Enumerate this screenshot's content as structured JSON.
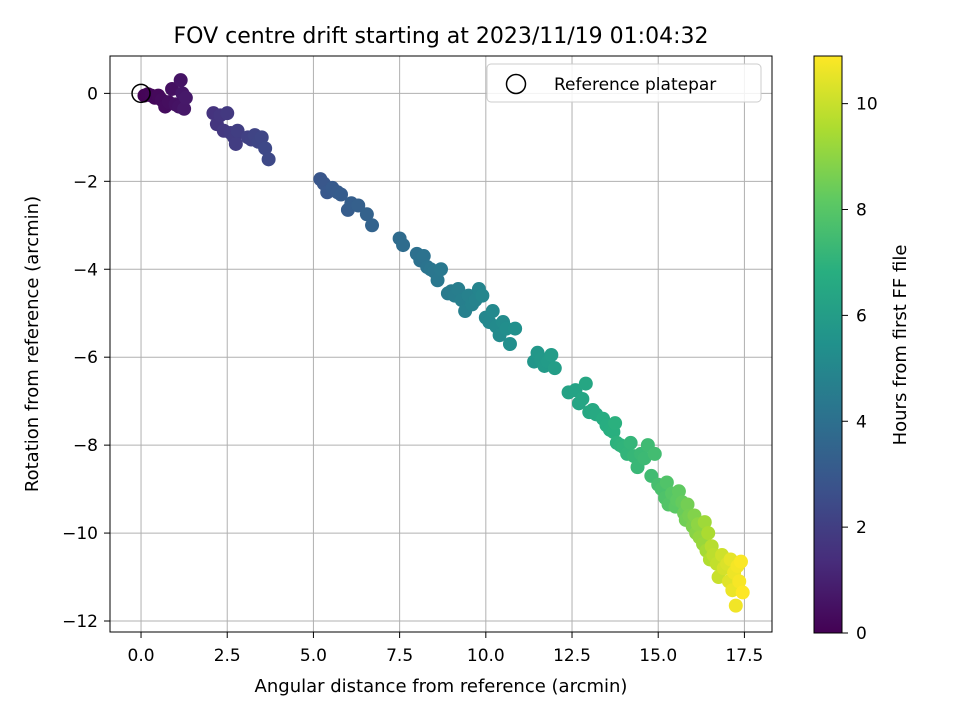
{
  "chart_data": {
    "type": "scatter",
    "title": "FOV centre drift starting at 2023/11/19 01:04:32",
    "xlabel": "Angular distance from reference (arcmin)",
    "ylabel": "Rotation from reference (arcmin)",
    "xlim": [
      -0.9,
      18.3
    ],
    "ylim": [
      -12.25,
      0.85
    ],
    "xticks": [
      0.0,
      2.5,
      5.0,
      7.5,
      10.0,
      12.5,
      15.0,
      17.5
    ],
    "xtick_labels": [
      "0.0",
      "2.5",
      "5.0",
      "7.5",
      "10.0",
      "12.5",
      "15.0",
      "17.5"
    ],
    "yticks": [
      0,
      -2,
      -4,
      -6,
      -8,
      -10,
      -12
    ],
    "ytick_labels": [
      "0",
      "−2",
      "−4",
      "−6",
      "−8",
      "−10",
      "−12"
    ],
    "grid": true,
    "colormap": "viridis",
    "colorbar": {
      "label": "Hours from first FF file",
      "range": [
        0,
        10.9
      ],
      "ticks": [
        0,
        2,
        4,
        6,
        8,
        10
      ],
      "tick_labels": [
        "0",
        "2",
        "4",
        "6",
        "8",
        "10"
      ]
    },
    "legend": {
      "placement": "top-right",
      "entries": [
        {
          "label": "Reference platepar",
          "marker": "open-circle"
        }
      ]
    },
    "reference_point": {
      "x": 0.0,
      "y": 0.0
    },
    "series": [
      {
        "name": "",
        "points": [
          [
            0.1,
            -0.05,
            0.05
          ],
          [
            0.2,
            -0.02,
            0.1
          ],
          [
            0.3,
            -0.05,
            0.15
          ],
          [
            0.4,
            -0.1,
            0.2
          ],
          [
            0.5,
            -0.05,
            0.25
          ],
          [
            0.6,
            -0.15,
            0.3
          ],
          [
            0.7,
            -0.3,
            0.35
          ],
          [
            0.8,
            -0.2,
            0.4
          ],
          [
            0.9,
            0.1,
            0.45
          ],
          [
            1.0,
            -0.25,
            0.5
          ],
          [
            1.1,
            -0.3,
            0.55
          ],
          [
            1.15,
            0.3,
            0.6
          ],
          [
            1.2,
            0.0,
            0.65
          ],
          [
            1.25,
            -0.35,
            0.7
          ],
          [
            1.3,
            -0.1,
            0.75
          ],
          [
            2.1,
            -0.45,
            1.6
          ],
          [
            2.2,
            -0.7,
            1.65
          ],
          [
            2.3,
            -0.5,
            1.7
          ],
          [
            2.4,
            -0.85,
            1.75
          ],
          [
            2.5,
            -0.45,
            1.8
          ],
          [
            2.6,
            -0.9,
            1.85
          ],
          [
            2.7,
            -1.0,
            1.9
          ],
          [
            2.75,
            -1.15,
            1.95
          ],
          [
            2.8,
            -0.85,
            2.0
          ],
          [
            3.1,
            -1.0,
            2.1
          ],
          [
            3.2,
            -1.05,
            2.15
          ],
          [
            3.3,
            -0.95,
            2.2
          ],
          [
            3.4,
            -1.1,
            2.25
          ],
          [
            3.5,
            -1.0,
            2.3
          ],
          [
            3.6,
            -1.25,
            2.35
          ],
          [
            3.7,
            -1.5,
            2.4
          ],
          [
            5.2,
            -1.95,
            2.9
          ],
          [
            5.3,
            -2.05,
            2.95
          ],
          [
            5.4,
            -2.25,
            3.0
          ],
          [
            5.55,
            -2.15,
            3.05
          ],
          [
            5.7,
            -2.25,
            3.1
          ],
          [
            5.8,
            -2.3,
            3.15
          ],
          [
            6.0,
            -2.65,
            3.2
          ],
          [
            6.1,
            -2.5,
            3.25
          ],
          [
            6.3,
            -2.55,
            3.3
          ],
          [
            6.55,
            -2.75,
            3.4
          ],
          [
            6.7,
            -3.0,
            3.45
          ],
          [
            7.5,
            -3.3,
            3.8
          ],
          [
            7.6,
            -3.45,
            3.85
          ],
          [
            8.0,
            -3.65,
            4.0
          ],
          [
            8.1,
            -3.8,
            4.05
          ],
          [
            8.2,
            -3.7,
            4.1
          ],
          [
            8.3,
            -3.95,
            4.15
          ],
          [
            8.4,
            -4.0,
            4.2
          ],
          [
            8.5,
            -4.05,
            4.25
          ],
          [
            8.6,
            -4.25,
            4.3
          ],
          [
            8.7,
            -4.0,
            4.35
          ],
          [
            8.9,
            -4.55,
            4.45
          ],
          [
            9.0,
            -4.5,
            4.5
          ],
          [
            9.1,
            -4.6,
            4.55
          ],
          [
            9.2,
            -4.45,
            4.6
          ],
          [
            9.3,
            -4.7,
            4.65
          ],
          [
            9.4,
            -4.95,
            4.7
          ],
          [
            9.5,
            -4.6,
            4.75
          ],
          [
            9.6,
            -4.8,
            4.8
          ],
          [
            9.7,
            -4.7,
            4.85
          ],
          [
            9.8,
            -4.45,
            4.9
          ],
          [
            9.9,
            -4.6,
            4.95
          ],
          [
            10.0,
            -5.1,
            5.0
          ],
          [
            10.1,
            -5.2,
            5.05
          ],
          [
            10.2,
            -4.95,
            5.1
          ],
          [
            10.3,
            -5.3,
            5.15
          ],
          [
            10.4,
            -5.5,
            5.2
          ],
          [
            10.5,
            -5.2,
            5.25
          ],
          [
            10.6,
            -5.35,
            5.3
          ],
          [
            10.7,
            -5.7,
            5.35
          ],
          [
            10.85,
            -5.35,
            5.4
          ],
          [
            11.4,
            -6.1,
            5.7
          ],
          [
            11.5,
            -5.9,
            5.75
          ],
          [
            11.6,
            -6.05,
            5.8
          ],
          [
            11.7,
            -6.2,
            5.85
          ],
          [
            11.8,
            -6.1,
            5.9
          ],
          [
            11.9,
            -5.95,
            5.95
          ],
          [
            12.0,
            -6.25,
            6.0
          ],
          [
            12.4,
            -6.8,
            6.25
          ],
          [
            12.6,
            -6.75,
            6.3
          ],
          [
            12.7,
            -7.05,
            6.35
          ],
          [
            12.8,
            -6.95,
            6.4
          ],
          [
            12.9,
            -6.6,
            6.45
          ],
          [
            13.0,
            -7.25,
            6.5
          ],
          [
            13.1,
            -7.2,
            6.55
          ],
          [
            13.2,
            -7.3,
            6.6
          ],
          [
            13.4,
            -7.4,
            6.7
          ],
          [
            13.5,
            -7.55,
            6.75
          ],
          [
            13.6,
            -7.65,
            6.8
          ],
          [
            13.7,
            -7.7,
            6.85
          ],
          [
            13.75,
            -7.5,
            6.9
          ],
          [
            13.8,
            -7.95,
            6.95
          ],
          [
            13.9,
            -8.0,
            7.0
          ],
          [
            14.0,
            -8.05,
            7.05
          ],
          [
            14.1,
            -8.2,
            7.1
          ],
          [
            14.2,
            -7.95,
            7.15
          ],
          [
            14.3,
            -8.25,
            7.2
          ],
          [
            14.4,
            -8.5,
            7.25
          ],
          [
            14.5,
            -8.2,
            7.3
          ],
          [
            14.6,
            -8.3,
            7.35
          ],
          [
            14.7,
            -8.0,
            7.4
          ],
          [
            14.8,
            -8.7,
            7.45
          ],
          [
            14.9,
            -8.2,
            7.5
          ],
          [
            15.0,
            -8.9,
            7.6
          ],
          [
            15.1,
            -9.0,
            7.7
          ],
          [
            15.2,
            -9.2,
            7.8
          ],
          [
            15.25,
            -8.85,
            7.85
          ],
          [
            15.3,
            -9.35,
            7.9
          ],
          [
            15.4,
            -9.1,
            8.0
          ],
          [
            15.5,
            -9.4,
            8.1
          ],
          [
            15.55,
            -9.25,
            8.15
          ],
          [
            15.6,
            -9.05,
            8.2
          ],
          [
            15.7,
            -9.3,
            8.3
          ],
          [
            15.75,
            -9.55,
            8.4
          ],
          [
            15.8,
            -9.7,
            8.5
          ],
          [
            15.85,
            -9.35,
            8.55
          ],
          [
            15.9,
            -9.6,
            8.6
          ],
          [
            16.0,
            -9.85,
            8.7
          ],
          [
            16.05,
            -9.6,
            8.8
          ],
          [
            16.1,
            -10.0,
            8.9
          ],
          [
            16.15,
            -9.8,
            9.0
          ],
          [
            16.2,
            -10.1,
            9.1
          ],
          [
            16.3,
            -10.25,
            9.2
          ],
          [
            16.35,
            -9.75,
            9.3
          ],
          [
            16.4,
            -10.4,
            9.4
          ],
          [
            16.45,
            -10.0,
            9.5
          ],
          [
            16.5,
            -10.6,
            9.6
          ],
          [
            16.55,
            -10.3,
            9.7
          ],
          [
            16.6,
            -10.5,
            9.8
          ],
          [
            16.7,
            -10.7,
            9.9
          ],
          [
            16.75,
            -11.0,
            10.0
          ],
          [
            16.85,
            -10.5,
            10.1
          ],
          [
            16.9,
            -10.8,
            10.2
          ],
          [
            17.0,
            -10.7,
            10.3
          ],
          [
            17.05,
            -11.1,
            10.4
          ],
          [
            17.1,
            -10.6,
            10.5
          ],
          [
            17.15,
            -11.3,
            10.6
          ],
          [
            17.2,
            -10.9,
            10.65
          ],
          [
            17.25,
            -11.65,
            10.7
          ],
          [
            17.3,
            -10.75,
            10.75
          ],
          [
            17.35,
            -11.1,
            10.8
          ],
          [
            17.4,
            -10.65,
            10.85
          ],
          [
            17.45,
            -11.35,
            10.9
          ]
        ]
      }
    ]
  }
}
